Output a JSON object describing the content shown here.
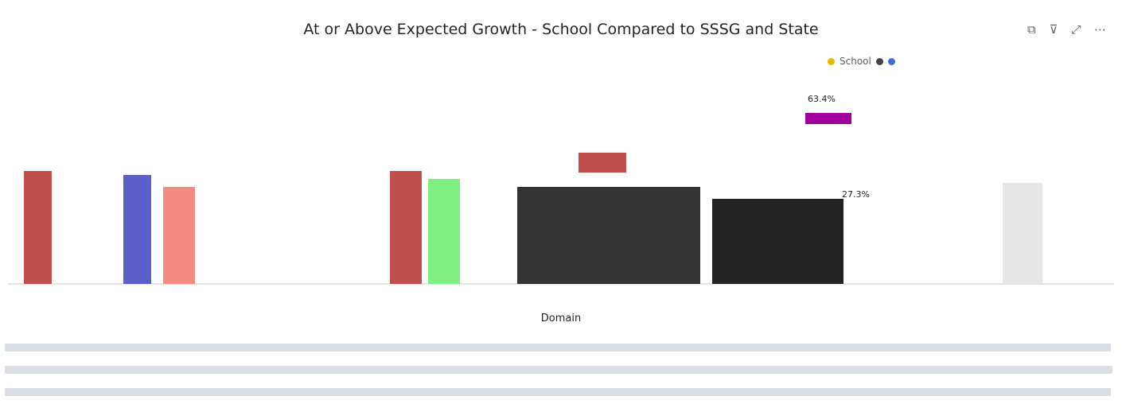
{
  "visual": {
    "title": "At or Above Expected Growth - School Compared to SSSG and State",
    "legend": [
      "School"
    ],
    "labels": [
      "63.4%",
      "27.3%"
    ],
    "x_axis_title": "Domain"
  }
}
